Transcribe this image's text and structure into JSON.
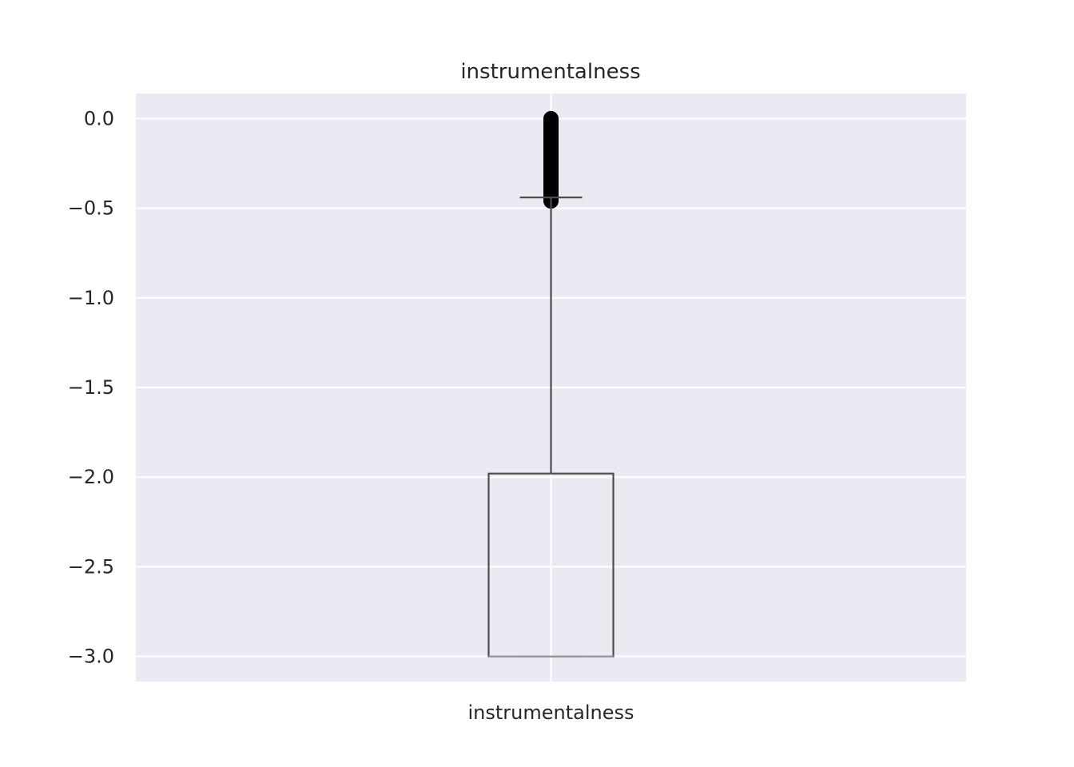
{
  "chart_data": {
    "type": "box",
    "title": "instrumentalness",
    "xlabel": "",
    "ylabel": "",
    "categories": [
      "instrumentalness"
    ],
    "ylim": [
      -3.14,
      0.14
    ],
    "yticks": [
      0.0,
      -0.5,
      -1.0,
      -1.5,
      -2.0,
      -2.5,
      -3.0
    ],
    "ytick_labels": [
      "0.0",
      "−0.5",
      "−1.0",
      "−1.5",
      "−2.0",
      "−2.5",
      "−3.0"
    ],
    "grid": true,
    "boxes": [
      {
        "name": "instrumentalness",
        "whisker_low": -3.0,
        "q1": -3.0,
        "median": -3.0,
        "q3": -1.98,
        "whisker_high": -0.44,
        "outliers_range": [
          -0.46,
          0.0
        ]
      }
    ],
    "colors": {
      "plot_background": "#EAEAF2",
      "grid": "#FFFFFF",
      "box_line": "#4D4D4D",
      "median_line": "#999999",
      "outliers": "#000000"
    }
  }
}
